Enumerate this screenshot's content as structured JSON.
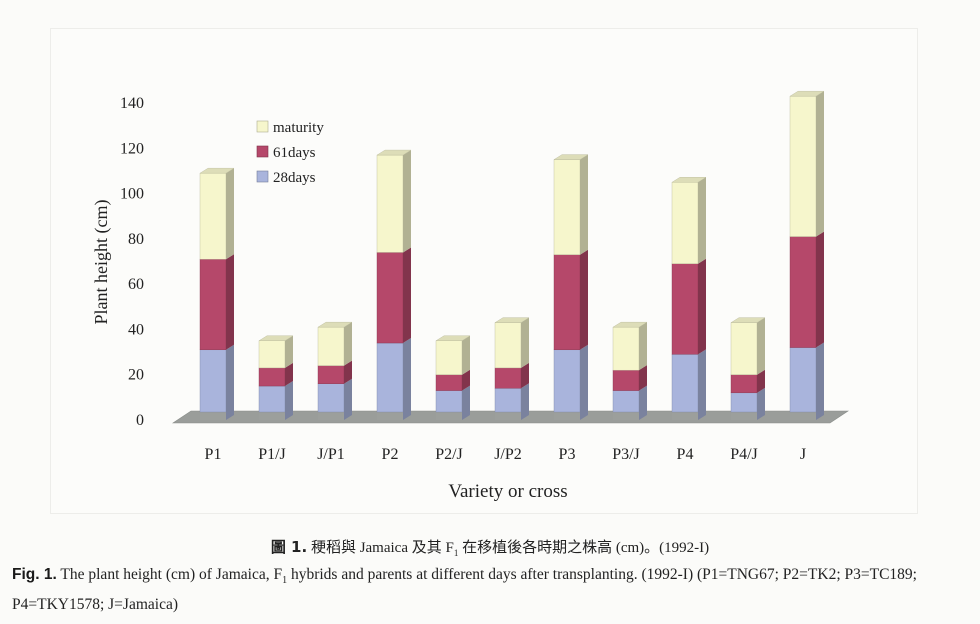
{
  "chart_data": {
    "type": "bar",
    "stacked": true,
    "categories": [
      "P1",
      "P1/J",
      "J/P1",
      "P2",
      "P2/J",
      "J/P2",
      "P3",
      "P3/J",
      "P4",
      "P4/J",
      "J"
    ],
    "series": [
      {
        "name": "28days",
        "color": "#a9b4dc",
        "values": [
          31,
          15,
          16,
          34,
          13,
          14,
          31,
          13,
          29,
          12,
          32
        ]
      },
      {
        "name": "61days",
        "color": "#b5486a",
        "values": [
          40,
          8,
          8,
          40,
          7,
          9,
          42,
          9,
          40,
          8,
          49
        ]
      },
      {
        "name": "maturity",
        "color": "#f6f6cc",
        "values": [
          38,
          12,
          17,
          43,
          15,
          20,
          42,
          19,
          36,
          23,
          62
        ]
      }
    ],
    "xlabel": "Variety or cross",
    "ylabel": "Plant height (cm)",
    "ylim": [
      0,
      140
    ],
    "yticks": [
      "0",
      "20",
      "40",
      "60",
      "80",
      "100",
      "120",
      "140"
    ],
    "grid": false,
    "legend_position": "top-left",
    "legend_order": [
      "maturity",
      "61days",
      "28days"
    ]
  },
  "caption_zh": {
    "fig": "圖 1.",
    "text": "稉稻與 Jamaica 及其 F",
    "sub": "1",
    "rest": " 在移植後各時期之株高 (cm)。(1992-I)"
  },
  "caption_en": {
    "fig": "Fig. 1.",
    "text1": "The plant height (cm) of Jamaica, F",
    "sub": "1",
    "text2": " hybrids and parents at different days after transplanting. (1992-I) (P1=TNG67; P2=TK2; P3=TC189; P4=TKY1578; J=Jamaica)"
  }
}
